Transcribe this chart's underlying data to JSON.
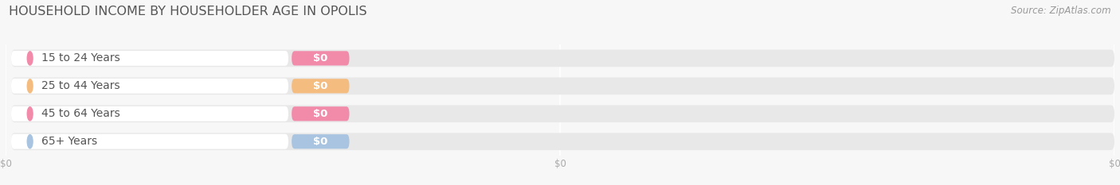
{
  "title": "HOUSEHOLD INCOME BY HOUSEHOLDER AGE IN OPOLIS",
  "source": "Source: ZipAtlas.com",
  "categories": [
    "15 to 24 Years",
    "25 to 44 Years",
    "45 to 64 Years",
    "65+ Years"
  ],
  "values": [
    0,
    0,
    0,
    0
  ],
  "bar_colors": [
    "#f28aaa",
    "#f5bc80",
    "#f28aaa",
    "#a8c4e0"
  ],
  "dot_colors": [
    "#f28aaa",
    "#f5bc80",
    "#f28aaa",
    "#a8c4e0"
  ],
  "label_pill_color": "#ffffff",
  "value_label": "$0",
  "bar_bg_color": "#e8e8e8",
  "bg_color": "#f7f7f7",
  "title_fontsize": 11.5,
  "source_fontsize": 8.5,
  "label_fontsize": 10,
  "value_fontsize": 9.5,
  "tick_label_color": "#aaaaaa",
  "title_color": "#555555",
  "label_text_color": "#555555"
}
